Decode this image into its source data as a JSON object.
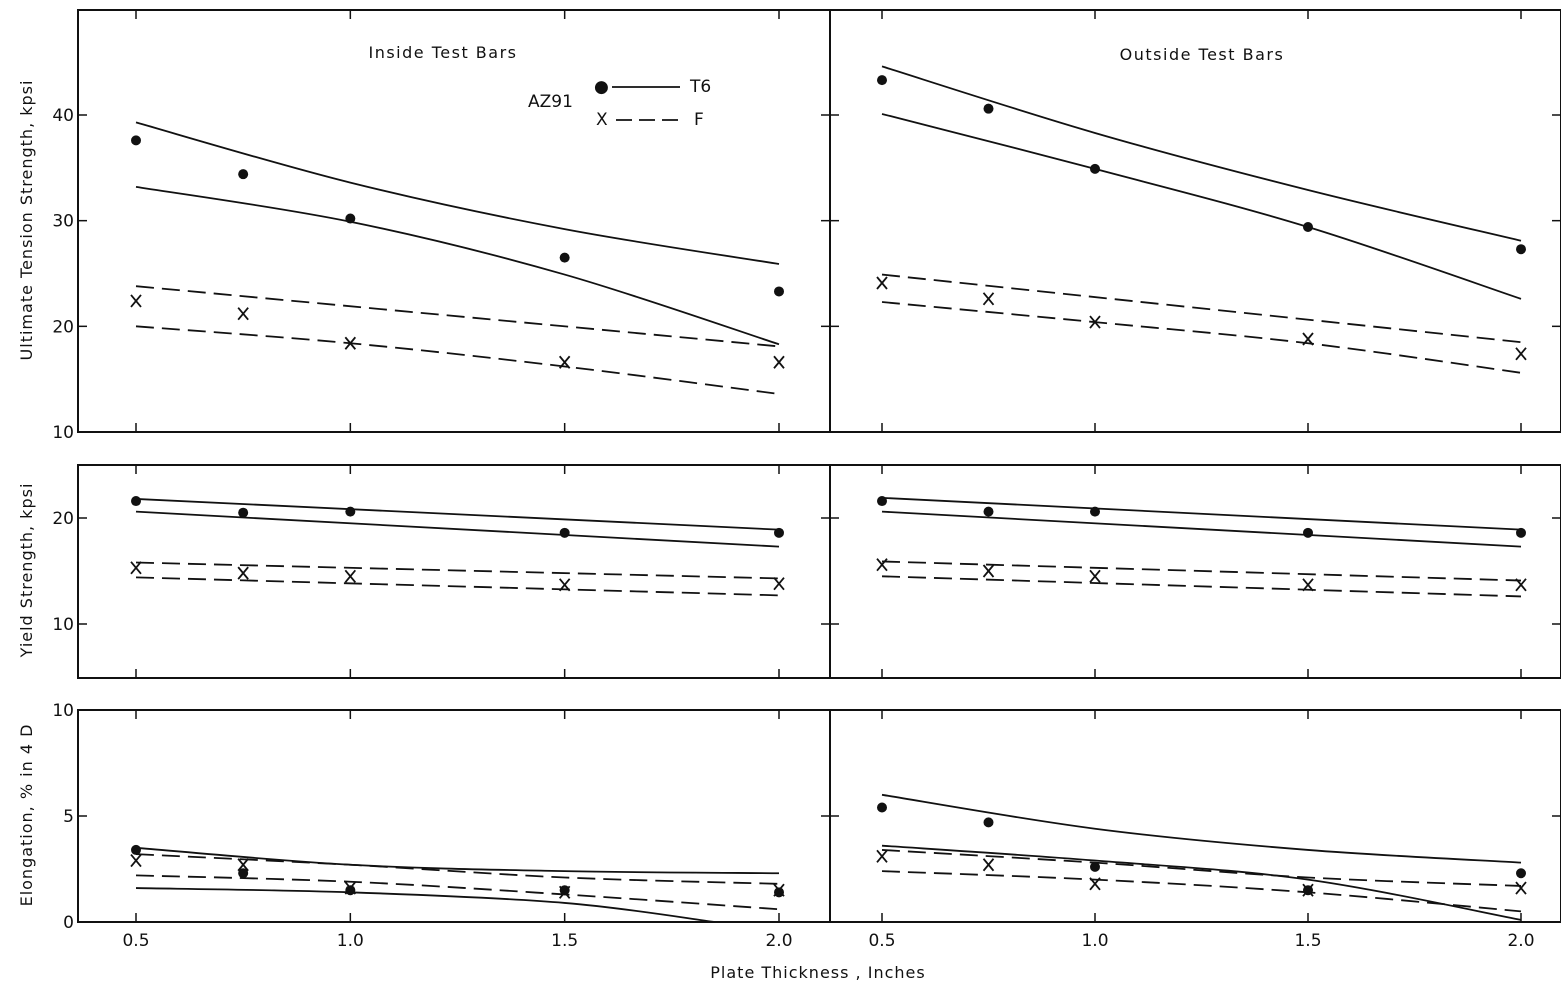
{
  "figure": {
    "xlabel": "Plate Thickness , Inches",
    "ylabel_uts": "Ultimate Tension Strength, kpsi",
    "ylabel_ys": "Yield Strength, kpsi",
    "ylabel_el": "Elongation, % in 4 D",
    "panel_titles": [
      "Inside Test Bars",
      "Outside Test Bars"
    ],
    "legend": {
      "alloy": "AZ91",
      "entries": [
        {
          "symbol": "●",
          "style": "solid",
          "label": "T6"
        },
        {
          "symbol": "X",
          "style": "dashed",
          "label": "F"
        }
      ]
    },
    "x_tick_labels": [
      [
        "0.5",
        "1.0",
        "1.5",
        "2.0"
      ],
      [
        "0.5",
        "1.0",
        "1.5",
        "2.0"
      ]
    ],
    "y_tick_labels": {
      "uts": [
        "10",
        "20",
        "30",
        "40"
      ],
      "ys": [
        "10",
        "20"
      ],
      "el": [
        "0",
        "5",
        "10"
      ]
    }
  },
  "chart_data": [
    {
      "type": "scatter",
      "row": "uts",
      "col": 0,
      "title": "Inside Test Bars",
      "ylabel": "Ultimate Tension Strength, kpsi",
      "xlim": [
        0.5,
        2.0
      ],
      "ylim": [
        10,
        50
      ],
      "points": [
        {
          "series": "T6",
          "marker": "dot",
          "x": [
            0.5,
            0.75,
            1.0,
            1.5,
            2.0
          ],
          "y": [
            37.6,
            34.4,
            30.2,
            26.5,
            23.3
          ]
        },
        {
          "series": "F",
          "marker": "x",
          "x": [
            0.5,
            0.75,
            1.0,
            1.5,
            2.0
          ],
          "y": [
            22.4,
            21.2,
            18.4,
            16.6,
            16.6
          ]
        }
      ],
      "lines": [
        {
          "series": "T6",
          "style": "solid",
          "x": [
            0.5,
            1.0,
            1.5,
            2.0
          ],
          "y": [
            39.3,
            33.6,
            29.2,
            25.9
          ]
        },
        {
          "series": "T6",
          "style": "solid",
          "x": [
            0.5,
            1.0,
            1.5,
            2.0
          ],
          "y": [
            33.2,
            29.9,
            24.9,
            18.3
          ]
        },
        {
          "series": "F",
          "style": "dashed",
          "x": [
            0.5,
            2.0
          ],
          "y": [
            23.8,
            18.1
          ]
        },
        {
          "series": "F",
          "style": "dashed",
          "x": [
            0.5,
            1.0,
            1.5,
            2.0
          ],
          "y": [
            20.0,
            18.4,
            16.2,
            13.6
          ]
        }
      ]
    },
    {
      "type": "scatter",
      "row": "uts",
      "col": 1,
      "title": "Outside Test Bars",
      "ylabel": "Ultimate Tension Strength, kpsi",
      "xlim": [
        0.5,
        2.0
      ],
      "ylim": [
        10,
        50
      ],
      "points": [
        {
          "series": "T6",
          "marker": "dot",
          "x": [
            0.5,
            0.75,
            1.0,
            1.5,
            2.0
          ],
          "y": [
            43.3,
            40.6,
            34.9,
            29.4,
            27.3
          ]
        },
        {
          "series": "F",
          "marker": "x",
          "x": [
            0.5,
            0.75,
            1.0,
            1.5,
            2.0
          ],
          "y": [
            24.1,
            22.6,
            20.4,
            18.8,
            17.4
          ]
        }
      ],
      "lines": [
        {
          "series": "T6",
          "style": "solid",
          "x": [
            0.5,
            1.0,
            1.5,
            2.0
          ],
          "y": [
            44.6,
            38.3,
            32.9,
            28.1
          ]
        },
        {
          "series": "T6",
          "style": "solid",
          "x": [
            0.5,
            1.0,
            1.5,
            2.0
          ],
          "y": [
            40.1,
            34.9,
            29.4,
            22.6
          ]
        },
        {
          "series": "F",
          "style": "dashed",
          "x": [
            0.5,
            2.0
          ],
          "y": [
            24.9,
            18.5
          ]
        },
        {
          "series": "F",
          "style": "dashed",
          "x": [
            0.5,
            1.0,
            1.5,
            2.0
          ],
          "y": [
            22.3,
            20.4,
            18.4,
            15.6
          ]
        }
      ]
    },
    {
      "type": "scatter",
      "row": "ys",
      "col": 0,
      "title": "",
      "ylabel": "Yield Strength, kpsi",
      "xlim": [
        0.5,
        2.0
      ],
      "ylim": [
        5,
        25
      ],
      "points": [
        {
          "series": "T6",
          "marker": "dot",
          "x": [
            0.5,
            0.75,
            1.0,
            1.5,
            2.0
          ],
          "y": [
            21.6,
            20.5,
            20.6,
            18.6,
            18.6
          ]
        },
        {
          "series": "F",
          "marker": "x",
          "x": [
            0.5,
            0.75,
            1.0,
            1.5,
            2.0
          ],
          "y": [
            15.3,
            14.8,
            14.5,
            13.7,
            13.8
          ]
        }
      ],
      "lines": [
        {
          "series": "T6",
          "style": "solid",
          "x": [
            0.5,
            2.0
          ],
          "y": [
            21.8,
            18.9
          ]
        },
        {
          "series": "T6",
          "style": "solid",
          "x": [
            0.5,
            2.0
          ],
          "y": [
            20.6,
            17.3
          ]
        },
        {
          "series": "F",
          "style": "dashed",
          "x": [
            0.5,
            2.0
          ],
          "y": [
            15.8,
            14.3
          ]
        },
        {
          "series": "F",
          "style": "dashed",
          "x": [
            0.5,
            2.0
          ],
          "y": [
            14.4,
            12.7
          ]
        }
      ]
    },
    {
      "type": "scatter",
      "row": "ys",
      "col": 1,
      "title": "",
      "ylabel": "Yield Strength, kpsi",
      "xlim": [
        0.5,
        2.0
      ],
      "ylim": [
        5,
        25
      ],
      "points": [
        {
          "series": "T6",
          "marker": "dot",
          "x": [
            0.5,
            0.75,
            1.0,
            1.5,
            2.0
          ],
          "y": [
            21.6,
            20.6,
            20.6,
            18.6,
            18.6
          ]
        },
        {
          "series": "F",
          "marker": "x",
          "x": [
            0.5,
            0.75,
            1.0,
            1.5,
            2.0
          ],
          "y": [
            15.6,
            15.0,
            14.5,
            13.7,
            13.7
          ]
        }
      ],
      "lines": [
        {
          "series": "T6",
          "style": "solid",
          "x": [
            0.5,
            2.0
          ],
          "y": [
            21.9,
            18.9
          ]
        },
        {
          "series": "T6",
          "style": "solid",
          "x": [
            0.5,
            2.0
          ],
          "y": [
            20.6,
            17.3
          ]
        },
        {
          "series": "F",
          "style": "dashed",
          "x": [
            0.5,
            2.0
          ],
          "y": [
            15.9,
            14.1
          ]
        },
        {
          "series": "F",
          "style": "dashed",
          "x": [
            0.5,
            2.0
          ],
          "y": [
            14.5,
            12.6
          ]
        }
      ]
    },
    {
      "type": "scatter",
      "row": "el",
      "col": 0,
      "title": "",
      "ylabel": "Elongation, % in 4 D",
      "xlim": [
        0.5,
        2.0
      ],
      "ylim": [
        0,
        10
      ],
      "points": [
        {
          "series": "T6",
          "marker": "dot",
          "x": [
            0.5,
            0.75,
            1.0,
            1.5,
            2.0
          ],
          "y": [
            3.4,
            2.3,
            1.5,
            1.5,
            1.4
          ]
        },
        {
          "series": "F",
          "marker": "x",
          "x": [
            0.5,
            0.75,
            1.0,
            1.5,
            2.0
          ],
          "y": [
            2.9,
            2.7,
            1.6,
            1.4,
            1.5
          ]
        }
      ],
      "lines": [
        {
          "series": "T6",
          "style": "solid",
          "x": [
            0.5,
            1.0,
            1.5,
            2.0
          ],
          "y": [
            3.5,
            2.7,
            2.4,
            2.3
          ]
        },
        {
          "series": "T6",
          "style": "solid",
          "x": [
            0.5,
            1.0,
            1.5,
            1.85
          ],
          "y": [
            1.6,
            1.4,
            0.9,
            0.0
          ]
        },
        {
          "series": "F",
          "style": "dashed",
          "x": [
            0.5,
            1.0,
            1.5,
            2.0
          ],
          "y": [
            3.2,
            2.7,
            2.1,
            1.8
          ]
        },
        {
          "series": "F",
          "style": "dashed",
          "x": [
            0.5,
            1.0,
            1.5,
            2.0
          ],
          "y": [
            2.2,
            1.9,
            1.3,
            0.6
          ]
        }
      ]
    },
    {
      "type": "scatter",
      "row": "el",
      "col": 1,
      "title": "",
      "ylabel": "Elongation, % in 4 D",
      "xlim": [
        0.5,
        2.0
      ],
      "ylim": [
        0,
        10
      ],
      "points": [
        {
          "series": "T6",
          "marker": "dot",
          "x": [
            0.5,
            0.75,
            1.0,
            1.5,
            2.0
          ],
          "y": [
            5.4,
            4.7,
            2.6,
            1.5,
            2.3
          ]
        },
        {
          "series": "F",
          "marker": "x",
          "x": [
            0.5,
            0.75,
            1.0,
            1.5,
            2.0
          ],
          "y": [
            3.1,
            2.7,
            1.8,
            1.5,
            1.6
          ]
        }
      ],
      "lines": [
        {
          "series": "T6",
          "style": "solid",
          "x": [
            0.5,
            1.0,
            1.5,
            2.0
          ],
          "y": [
            6.0,
            4.4,
            3.4,
            2.8
          ]
        },
        {
          "series": "T6",
          "style": "solid",
          "x": [
            0.5,
            1.0,
            1.5,
            2.0
          ],
          "y": [
            3.6,
            2.9,
            2.0,
            0.1
          ]
        },
        {
          "series": "F",
          "style": "dashed",
          "x": [
            0.5,
            1.0,
            1.5,
            2.0
          ],
          "y": [
            3.4,
            2.8,
            2.1,
            1.7
          ]
        },
        {
          "series": "F",
          "style": "dashed",
          "x": [
            0.5,
            1.0,
            1.5,
            2.0
          ],
          "y": [
            2.4,
            2.0,
            1.4,
            0.5
          ]
        }
      ]
    }
  ]
}
